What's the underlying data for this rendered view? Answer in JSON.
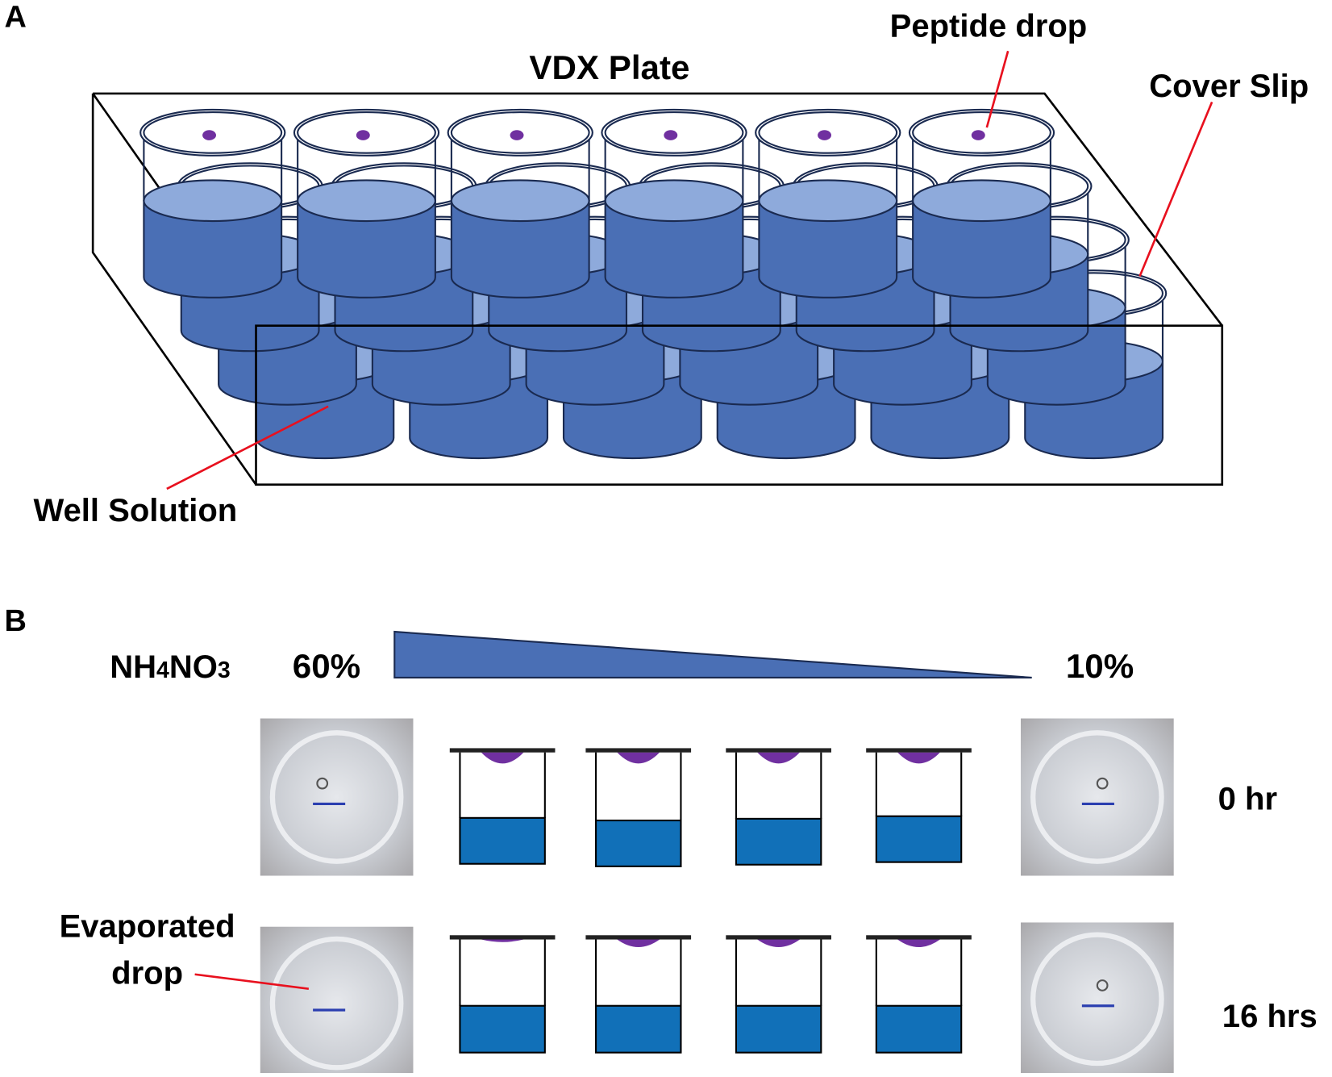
{
  "panel_a": {
    "label": "A",
    "title": "VDX Plate",
    "peptide_drop": "Peptide drop",
    "cover_slip": "Cover Slip",
    "well_solution": "Well Solution"
  },
  "panel_b": {
    "label": "B",
    "formula_parts": [
      "NH",
      "4",
      "NO",
      "3"
    ],
    "high": "60%",
    "low": "10%",
    "time_0": "0 hr",
    "time_16": "16 hrs",
    "evaporated": [
      "Evaporated",
      "drop"
    ]
  }
}
